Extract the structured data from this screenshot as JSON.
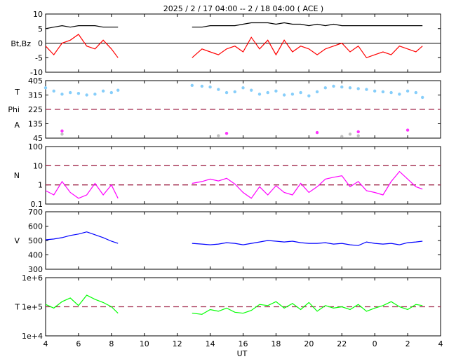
{
  "title": "2025 /  2 / 17   04:00 --  2 / 18   04:00 ( ACE )",
  "x_axis_label": "UT",
  "x_tick_labels": [
    "4",
    "6",
    "8",
    "10",
    "12",
    "14",
    "16",
    "18",
    "20",
    "22",
    "0",
    "2",
    "4"
  ],
  "colors": {
    "bt": "#000000",
    "bz": "#ff0000",
    "theta": "#87cefa",
    "phi": "#c0c0c0",
    "alpha": "#ff33ff",
    "density": "#ff00ff",
    "speed": "#0000ff",
    "temperature": "#00ff00",
    "reference_line": "#a0284b"
  },
  "chart_data": [
    {
      "type": "line",
      "panel": "magnetic-field",
      "ylabel": "Bt,Bz",
      "ylim": [
        -10,
        10
      ],
      "y_tick_labels": [
        "10",
        "5",
        "0",
        "-5",
        "-10"
      ],
      "reference_lines": [
        0
      ],
      "x_hours": [
        4,
        4.5,
        5,
        5.5,
        6,
        6.5,
        7,
        7.5,
        8,
        8.4,
        12.9,
        13.5,
        14,
        14.5,
        15,
        15.5,
        16,
        16.5,
        17,
        17.5,
        18,
        18.5,
        19,
        19.5,
        20,
        20.5,
        21,
        21.5,
        22,
        22.5,
        23,
        23.5,
        24,
        24.5,
        25,
        25.5,
        26,
        26.5,
        26.9
      ],
      "series": [
        {
          "name": "Bt",
          "values": [
            5,
            5.5,
            6,
            5.5,
            6,
            6,
            6,
            5.5,
            5.5,
            5.5,
            5.5,
            5.5,
            6,
            6,
            6,
            6,
            6.5,
            7,
            7,
            7,
            6.5,
            7,
            6.5,
            6.5,
            6,
            6.5,
            6,
            6.5,
            6,
            6,
            6,
            6,
            6,
            6,
            6,
            6,
            6,
            6,
            6
          ]
        },
        {
          "name": "Bz",
          "values": [
            -1,
            -4,
            0,
            1,
            3,
            -1,
            -2,
            1,
            -2,
            -5,
            -5,
            -2,
            -3,
            -4,
            -2,
            -1,
            -3,
            2,
            -2,
            1,
            -4,
            1,
            -3,
            -1,
            -2,
            -4,
            -2,
            -1,
            0,
            -3,
            -1,
            -5,
            -4,
            -3,
            -4,
            -1,
            -2,
            -3,
            -1
          ]
        }
      ]
    },
    {
      "type": "scatter",
      "panel": "angles",
      "ylabels": [
        "T",
        "Phi",
        "A"
      ],
      "ylim": [
        45,
        405
      ],
      "y_tick_labels": [
        "405",
        "315",
        "225",
        "135",
        "45"
      ],
      "reference_lines": [
        225
      ],
      "x_hours": [
        4,
        4.5,
        5,
        5.5,
        6,
        6.5,
        7,
        7.5,
        8,
        8.4,
        12.9,
        13.5,
        14,
        14.5,
        15,
        15.5,
        16,
        16.5,
        17,
        17.5,
        18,
        18.5,
        19,
        19.5,
        20,
        20.5,
        21,
        21.5,
        22,
        22.5,
        23,
        23.5,
        24,
        24.5,
        25,
        25.5,
        26,
        26.5,
        26.9
      ],
      "series": [
        {
          "name": "T",
          "values": [
            360,
            340,
            320,
            330,
            325,
            315,
            320,
            340,
            330,
            345,
            375,
            370,
            365,
            350,
            330,
            335,
            360,
            345,
            320,
            330,
            340,
            315,
            320,
            330,
            310,
            335,
            360,
            370,
            365,
            360,
            355,
            350,
            340,
            335,
            330,
            320,
            340,
            330,
            300
          ]
        },
        {
          "name": "Phi",
          "values": [
            null,
            null,
            70,
            null,
            null,
            null,
            null,
            null,
            null,
            null,
            null,
            null,
            null,
            60,
            null,
            null,
            null,
            null,
            null,
            null,
            null,
            null,
            null,
            null,
            null,
            null,
            null,
            null,
            55,
            70,
            60,
            null,
            null,
            null,
            null,
            null,
            null,
            null,
            null
          ]
        },
        {
          "name": "A",
          "values": [
            null,
            null,
            90,
            null,
            null,
            null,
            null,
            null,
            null,
            null,
            null,
            null,
            null,
            null,
            75,
            null,
            null,
            null,
            null,
            null,
            null,
            null,
            null,
            null,
            null,
            80,
            null,
            null,
            null,
            null,
            85,
            null,
            null,
            null,
            null,
            null,
            95,
            null,
            null
          ]
        }
      ]
    },
    {
      "type": "line",
      "panel": "density",
      "ylabel": "N",
      "yscale": "log",
      "ylim": [
        0.1,
        100
      ],
      "y_tick_labels": [
        "100",
        "10",
        "1",
        "0.1"
      ],
      "reference_lines": [
        1,
        10
      ],
      "x_hours": [
        4,
        4.5,
        5,
        5.5,
        6,
        6.5,
        7,
        7.5,
        8,
        8.4,
        12.9,
        13.5,
        14,
        14.5,
        15,
        15.5,
        16,
        16.5,
        17,
        17.5,
        18,
        18.5,
        19,
        19.5,
        20,
        20.5,
        21,
        21.5,
        22,
        22.5,
        23,
        23.5,
        24,
        24.5,
        25,
        25.5,
        26,
        26.5,
        26.9
      ],
      "series": [
        {
          "name": "N",
          "values": [
            0.5,
            0.3,
            1.5,
            0.4,
            0.2,
            0.3,
            1.2,
            0.3,
            1,
            0.2,
            1.2,
            1.5,
            2,
            1.6,
            2.2,
            1.1,
            0.4,
            0.2,
            0.8,
            0.3,
            0.9,
            0.4,
            0.3,
            1.2,
            0.4,
            0.8,
            2,
            2.5,
            3,
            0.8,
            1.5,
            0.5,
            0.4,
            0.3,
            1.5,
            5,
            2,
            0.8,
            0.6
          ]
        }
      ]
    },
    {
      "type": "line",
      "panel": "speed",
      "ylabel": "V",
      "ylim": [
        300,
        700
      ],
      "y_tick_labels": [
        "700",
        "600",
        "500",
        "400",
        "300"
      ],
      "x_hours": [
        4,
        4.5,
        5,
        5.5,
        6,
        6.5,
        7,
        7.5,
        8,
        8.4,
        12.9,
        13.5,
        14,
        14.5,
        15,
        15.5,
        16,
        16.5,
        17,
        17.5,
        18,
        18.5,
        19,
        19.5,
        20,
        20.5,
        21,
        21.5,
        22,
        22.5,
        23,
        23.5,
        24,
        24.5,
        25,
        25.5,
        26,
        26.5,
        26.9
      ],
      "series": [
        {
          "name": "V",
          "values": [
            505,
            510,
            520,
            535,
            545,
            560,
            540,
            520,
            495,
            480,
            480,
            475,
            470,
            475,
            485,
            480,
            470,
            480,
            490,
            500,
            495,
            490,
            495,
            485,
            480,
            480,
            485,
            475,
            480,
            470,
            465,
            490,
            480,
            475,
            480,
            470,
            485,
            490,
            495
          ]
        }
      ]
    },
    {
      "type": "line",
      "panel": "temperature",
      "ylabel": "T",
      "yscale": "log",
      "ylim": [
        10000,
        1000000
      ],
      "y_tick_labels": [
        "1e+6",
        "1e+5",
        "1e+4"
      ],
      "reference_lines": [
        100000
      ],
      "x_hours": [
        4,
        4.5,
        5,
        5.5,
        6,
        6.5,
        7,
        7.5,
        8,
        8.4,
        12.9,
        13.5,
        14,
        14.5,
        15,
        15.5,
        16,
        16.5,
        17,
        17.5,
        18,
        18.5,
        19,
        19.5,
        20,
        20.5,
        21,
        21.5,
        22,
        22.5,
        23,
        23.5,
        24,
        24.5,
        25,
        25.5,
        26,
        26.5,
        26.9
      ],
      "series": [
        {
          "name": "T",
          "values": [
            120000,
            90000,
            150000,
            200000,
            110000,
            250000,
            180000,
            140000,
            100000,
            60000,
            60000,
            55000,
            80000,
            70000,
            90000,
            65000,
            60000,
            75000,
            120000,
            110000,
            150000,
            90000,
            130000,
            80000,
            140000,
            70000,
            110000,
            90000,
            100000,
            80000,
            120000,
            70000,
            90000,
            110000,
            150000,
            100000,
            80000,
            120000,
            110000
          ]
        }
      ]
    }
  ]
}
